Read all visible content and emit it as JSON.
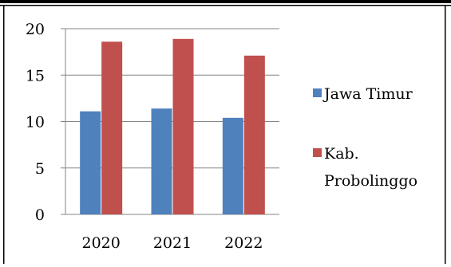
{
  "chart_data": {
    "type": "bar",
    "categories": [
      "2020",
      "2021",
      "2022"
    ],
    "series": [
      {
        "name": "Jawa Timur",
        "values": [
          11.1,
          11.4,
          10.4
        ],
        "color": "#4f81bd"
      },
      {
        "name": "Kab. Probolinggo",
        "legend_lines": [
          "Kab.",
          "Probolinggo"
        ],
        "values": [
          18.6,
          18.9,
          17.1
        ],
        "color": "#c0504d"
      }
    ],
    "ylim": [
      0,
      20
    ],
    "yticks": [
      "0",
      "5",
      "10",
      "15",
      "20"
    ],
    "grid": true,
    "legend_position": "right"
  }
}
